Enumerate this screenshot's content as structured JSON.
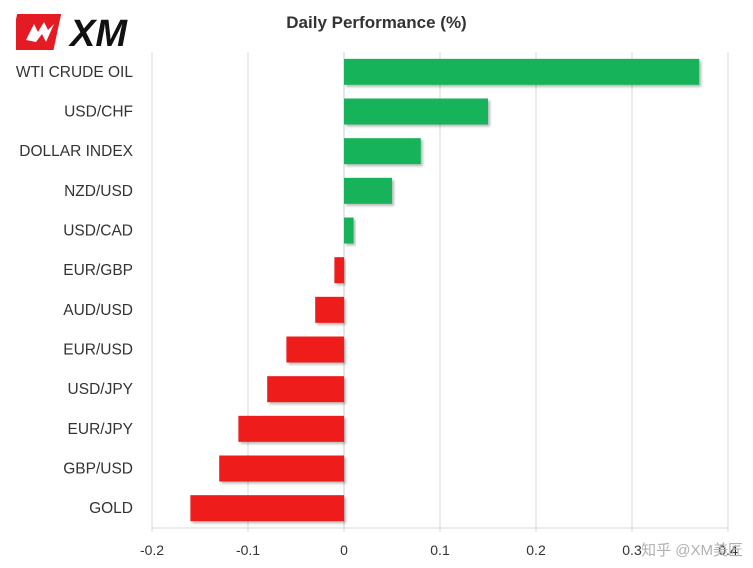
{
  "header": {
    "logo_text": "XM"
  },
  "chart_data": {
    "type": "bar",
    "orientation": "horizontal",
    "title": "Daily Performance (%)",
    "categories": [
      "WTI CRUDE OIL",
      "USD/CHF",
      "DOLLAR INDEX",
      "NZD/USD",
      "USD/CAD",
      "EUR/GBP",
      "AUD/USD",
      "EUR/USD",
      "USD/JPY",
      "EUR/JPY",
      "GBP/USD",
      "GOLD"
    ],
    "values": [
      0.37,
      0.15,
      0.08,
      0.05,
      0.01,
      -0.01,
      -0.03,
      -0.06,
      -0.08,
      -0.11,
      -0.13,
      -0.16
    ],
    "xlim": [
      -0.2,
      0.4
    ],
    "xticks": [
      -0.2,
      -0.1,
      0,
      0.1,
      0.2,
      0.3,
      0.4
    ],
    "xtick_labels": [
      "-0.2",
      "-0.1",
      "0",
      "0.1",
      "0.2",
      "0.3",
      "0.4"
    ],
    "grid": "vertical",
    "colors": {
      "positive": "#19b35a",
      "negative": "#ef1a1a",
      "grid": "#d9d9d9"
    }
  },
  "watermark": "知乎 @XM美匠"
}
